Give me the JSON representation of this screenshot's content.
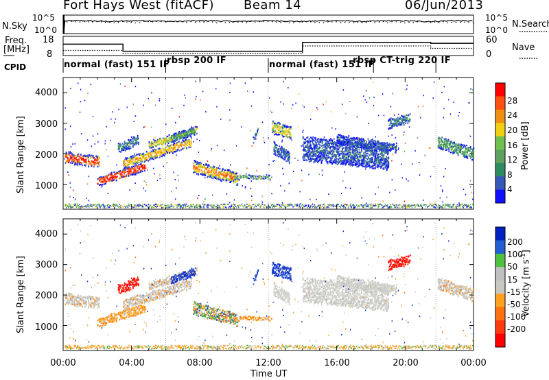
{
  "header": {
    "station": "Fort Hays West (fitACF)",
    "beam": "Beam 14",
    "date": "06/Jun/2013"
  },
  "panels": {
    "nsky": {
      "label": "N.Sky",
      "right_label": "N.Search",
      "yticks": [
        "10^5",
        "10^0"
      ],
      "right_yticks": [
        "10^5",
        "10^0"
      ]
    },
    "freq": {
      "label_line1": "Freq.",
      "label_line2": "[MHz]",
      "right_label": "Nave",
      "yticks": [
        "18",
        "8"
      ],
      "right_yticks": [
        "60",
        "0"
      ]
    },
    "cpid": {
      "label": "CPID"
    },
    "power": {
      "ylabel": "Slant Range [km]",
      "cbar_label": "Power [dB]"
    },
    "velocity": {
      "ylabel": "Slant Range [km]",
      "cbar_label": "Velocity [m s^-1]"
    }
  },
  "xaxis": {
    "label": "Time UT",
    "ticks": [
      "00:00",
      "04:00",
      "08:00",
      "12:00",
      "16:00",
      "20:00",
      "00:00"
    ]
  },
  "chart_data": [
    {
      "type": "line",
      "title": "N.Sky / N.Search",
      "series": [
        {
          "name": "N.Sky",
          "x": [
            0,
            0.3,
            3,
            6,
            9,
            12,
            15,
            18,
            21,
            24
          ],
          "values": [
            1,
            3000,
            3500,
            3200,
            3500,
            3000,
            3300,
            3500,
            3200,
            3000
          ]
        },
        {
          "name": "N.Search",
          "x": [
            0,
            0.3,
            3,
            6,
            9,
            12,
            15,
            18,
            21,
            24
          ],
          "values": [
            1,
            2000,
            2500,
            2200,
            2300,
            2200,
            2400,
            2300,
            2200,
            2000
          ]
        }
      ],
      "ylim": [
        1,
        100000
      ],
      "yscale": "log"
    },
    {
      "type": "line",
      "title": "Freq. / Nave",
      "series": [
        {
          "name": "Freq.",
          "x": [
            0,
            3.5,
            3.5,
            14,
            14,
            21.5,
            21.5,
            24
          ],
          "values": [
            14,
            14,
            10,
            10,
            15,
            15,
            14.5,
            14.5
          ]
        },
        {
          "name": "Nave",
          "x": [
            0,
            3.5,
            3.5,
            14,
            14,
            21.5,
            21.5,
            24
          ],
          "values": [
            15,
            15,
            5,
            5,
            30,
            30,
            22,
            22
          ]
        }
      ],
      "ylim": [
        8,
        18
      ],
      "y2lim": [
        0,
        60
      ]
    },
    {
      "type": "table",
      "title": "CPID",
      "segments": [
        {
          "start": 0,
          "end": 6,
          "label": "normal (fast) 151 IF"
        },
        {
          "start": 6,
          "end": 12,
          "label": "rbsp 200 IF"
        },
        {
          "start": 12,
          "end": 18.15,
          "label": "normal (fast) 151 IF"
        },
        {
          "start": 18.15,
          "end": 24,
          "label": "rbsp CT-trig 220 IF"
        }
      ],
      "dividers": [
        6,
        12,
        18.15,
        21.8
      ]
    },
    {
      "type": "heatmap",
      "title": "Power",
      "xlim": [
        0,
        24
      ],
      "ylim": [
        180,
        4500
      ],
      "yticks": [
        1000,
        2000,
        3000,
        4000
      ],
      "colorbar": {
        "label": "Power [dB]",
        "ticks": [
          4,
          8,
          12,
          16,
          20,
          24,
          28
        ],
        "range": [
          0,
          32
        ]
      }
    },
    {
      "type": "heatmap",
      "title": "Velocity",
      "xlim": [
        0,
        24
      ],
      "ylim": [
        180,
        4500
      ],
      "yticks": [
        1000,
        2000,
        3000,
        4000
      ],
      "colorbar": {
        "label": "Velocity [m s^-1]",
        "ticks": [
          "-200",
          "-100",
          "-50",
          "-15",
          "15",
          "50",
          "100",
          "200"
        ]
      }
    }
  ],
  "colors": {
    "power_scale": [
      "#1010ff",
      "#3858b8",
      "#2e8a60",
      "#60a060",
      "#70c050",
      "#f0d010",
      "#f09010",
      "#ff5010",
      "#ff0000"
    ],
    "velocity_scale": [
      "#ff0000",
      "#ff3a10",
      "#ff7010",
      "#ffa020",
      "#c8c8c0",
      "#c0c0c0",
      "#50c040",
      "#2060d0",
      "#0020c0"
    ],
    "bluegrey": "#3060c0"
  }
}
